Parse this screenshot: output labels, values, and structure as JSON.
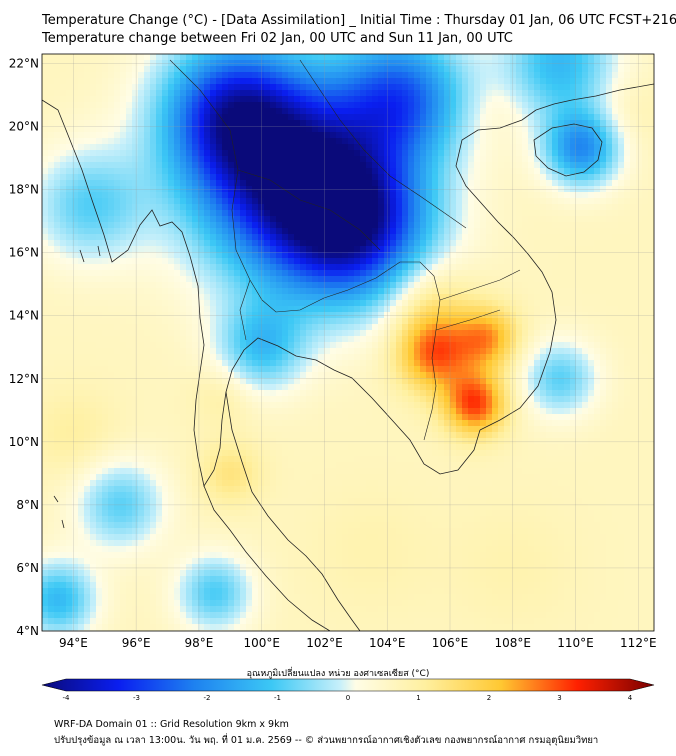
{
  "title_line1": "Temperature Change (°C) - [Data Assimilation] _ Initial Time : Thursday 01 Jan, 06 UTC FCST+216",
  "title_line2": "Temperature change between Fri 02 Jan, 00 UTC and Sun 11 Jan, 00 UTC",
  "map": {
    "lon_range": [
      93,
      112.5
    ],
    "lat_range": [
      4,
      22.3
    ],
    "lon_ticks": [
      {
        "value": 94,
        "label": "94°E"
      },
      {
        "value": 96,
        "label": "96°E"
      },
      {
        "value": 98,
        "label": "98°E"
      },
      {
        "value": 100,
        "label": "100°E"
      },
      {
        "value": 102,
        "label": "102°E"
      },
      {
        "value": 104,
        "label": "104°E"
      },
      {
        "value": 106,
        "label": "106°E"
      },
      {
        "value": 108,
        "label": "108°E"
      },
      {
        "value": 110,
        "label": "110°E"
      },
      {
        "value": 112,
        "label": "112°E"
      }
    ],
    "lat_ticks": [
      {
        "value": 4,
        "label": "4°N"
      },
      {
        "value": 6,
        "label": "6°N"
      },
      {
        "value": 8,
        "label": "8°N"
      },
      {
        "value": 10,
        "label": "10°N"
      },
      {
        "value": 12,
        "label": "12°N"
      },
      {
        "value": 14,
        "label": "14°N"
      },
      {
        "value": 16,
        "label": "16°N"
      },
      {
        "value": 18,
        "label": "18°N"
      },
      {
        "value": 20,
        "label": "20°N"
      },
      {
        "value": 22,
        "label": "22°N"
      }
    ],
    "gridlines": true,
    "background_value": 0.6,
    "field_centers": [
      {
        "lon": 101.0,
        "lat": 18.4,
        "value": -3.6,
        "radius": 3.2
      },
      {
        "lon": 103.0,
        "lat": 16.8,
        "value": -2.5,
        "radius": 2.4
      },
      {
        "lon": 99.0,
        "lat": 20.5,
        "value": -2.2,
        "radius": 2.2
      },
      {
        "lon": 104.5,
        "lat": 21.0,
        "value": -2.0,
        "radius": 2.0
      },
      {
        "lon": 110.2,
        "lat": 19.3,
        "value": -1.8,
        "radius": 1.2
      },
      {
        "lon": 109.5,
        "lat": 22.0,
        "value": -1.2,
        "radius": 1.8
      },
      {
        "lon": 100.0,
        "lat": 13.0,
        "value": -1.0,
        "radius": 1.4
      },
      {
        "lon": 94.5,
        "lat": 17.5,
        "value": -0.8,
        "radius": 1.8
      },
      {
        "lon": 95.5,
        "lat": 8.0,
        "value": -0.8,
        "radius": 1.4
      },
      {
        "lon": 93.5,
        "lat": 5.0,
        "value": -1.2,
        "radius": 1.2
      },
      {
        "lon": 98.5,
        "lat": 5.2,
        "value": -0.9,
        "radius": 1.2
      },
      {
        "lon": 109.5,
        "lat": 12.0,
        "value": -0.8,
        "radius": 1.2
      },
      {
        "lon": 105.5,
        "lat": 12.8,
        "value": 2.6,
        "radius": 1.2
      },
      {
        "lon": 106.8,
        "lat": 11.2,
        "value": 2.8,
        "radius": 1.0
      },
      {
        "lon": 107.2,
        "lat": 13.3,
        "value": 2.2,
        "radius": 1.0
      },
      {
        "lon": 105.3,
        "lat": 14.5,
        "value": 1.5,
        "radius": 1.4
      },
      {
        "lon": 99.0,
        "lat": 9.0,
        "value": 1.3,
        "radius": 1.0
      },
      {
        "lon": 98.8,
        "lat": 11.5,
        "value": 1.0,
        "radius": 1.0
      },
      {
        "lon": 94.0,
        "lat": 10.2,
        "value": 1.0,
        "radius": 1.4
      },
      {
        "lon": 103.5,
        "lat": 6.5,
        "value": 0.8,
        "radius": 2.0
      },
      {
        "lon": 108.0,
        "lat": 6.0,
        "value": 0.8,
        "radius": 2.0
      },
      {
        "lon": 111.5,
        "lat": 20.5,
        "value": 0.9,
        "radius": 1.2
      },
      {
        "lon": 107.5,
        "lat": 20.5,
        "value": 0.8,
        "radius": 1.0
      }
    ]
  },
  "colorbar": {
    "label": "อุณหภูมิเปลี่ยนแปลง หน่วย องศาเซลเซียส (°C)",
    "min": -4,
    "max": 4,
    "ticks": [
      {
        "value": -4,
        "label": "-4"
      },
      {
        "value": -3,
        "label": "-3"
      },
      {
        "value": -2,
        "label": "-2"
      },
      {
        "value": -1,
        "label": "-1"
      },
      {
        "value": 0,
        "label": "0"
      },
      {
        "value": 1,
        "label": "1"
      },
      {
        "value": 2,
        "label": "2"
      },
      {
        "value": 3,
        "label": "3"
      },
      {
        "value": 4,
        "label": "4"
      }
    ],
    "colors": {
      "neg4": "#0a0a7a",
      "neg3": "#0a1ef0",
      "neg2": "#1e82f0",
      "neg1": "#3cc8f5",
      "zero_low": "#c8f0fa",
      "zero_high": "#fffde6",
      "pos1": "#fff0a0",
      "pos2": "#ffc832",
      "pos3": "#ff2000",
      "pos4": "#780000"
    }
  },
  "footer_line1": "WRF-DA Domain 01 :: Grid Resolution 9km x 9km",
  "footer_line2": "ปรับปรุงข้อมูล ณ เวลา 13:00น. วัน พฤ. ที่ 01 ม.ค. 2569 -- © ส่วนพยากรณ์อากาศเชิงตัวเลข กองพยากรณ์อากาศ กรมอุตุนิยมวิทยา"
}
